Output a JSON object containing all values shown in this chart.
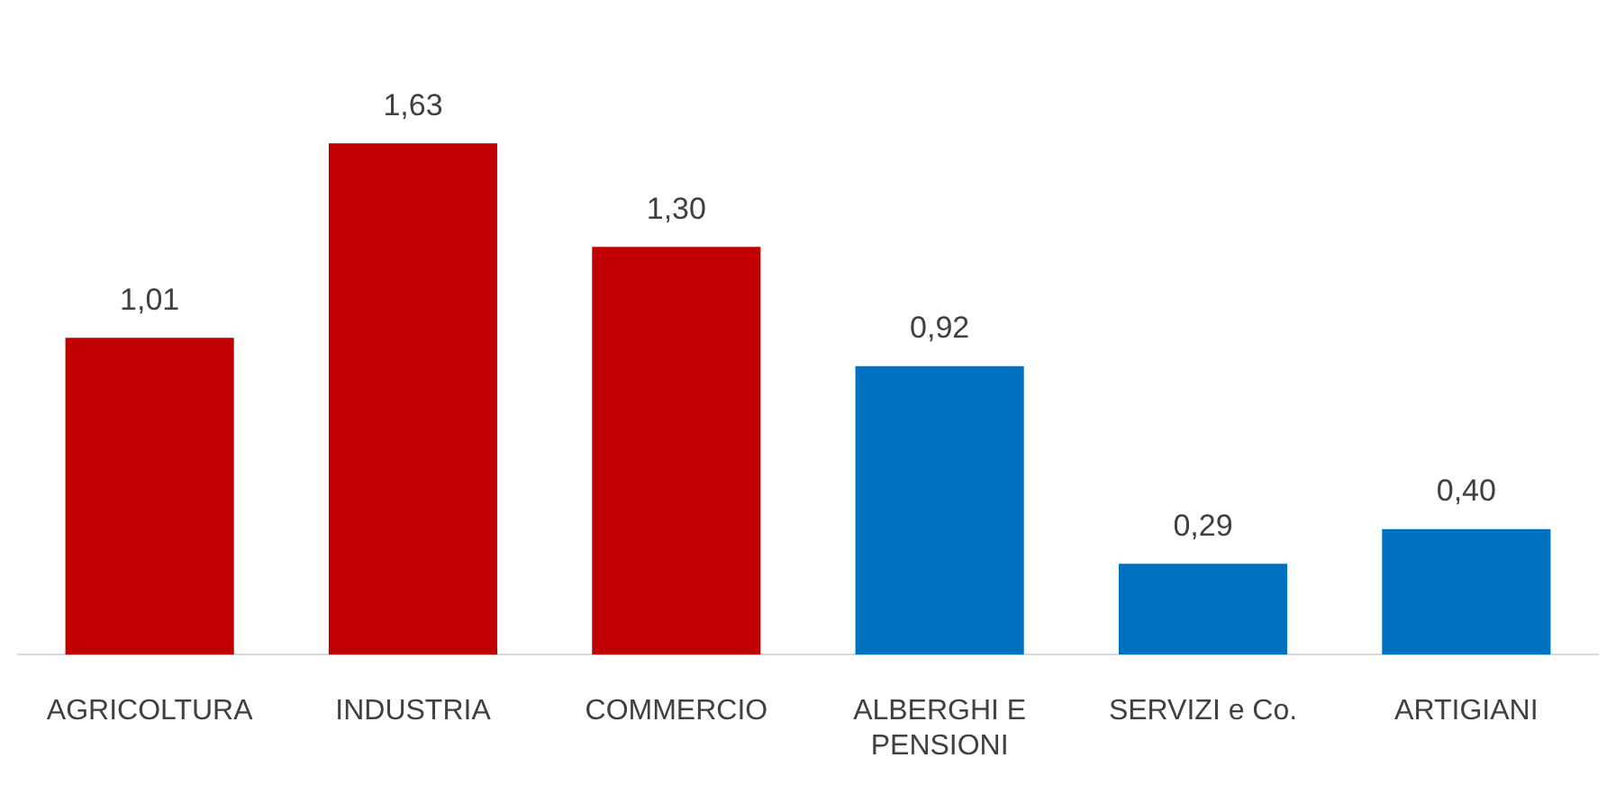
{
  "chart_data": {
    "type": "bar",
    "categories": [
      "AGRICOLTURA",
      "INDUSTRIA",
      "COMMERCIO",
      "ALBERGHI E PENSIONI",
      "SERVIZI e Co.",
      "ARTIGIANI"
    ],
    "values": [
      1.01,
      1.63,
      1.3,
      0.92,
      0.29,
      0.4
    ],
    "colors": [
      "#c00000",
      "#c00000",
      "#c00000",
      "#0070c0",
      "#0070c0",
      "#0070c0"
    ],
    "value_labels": [
      "1,01",
      "1,63",
      "1,30",
      "0,92",
      "0,29",
      "0,40"
    ],
    "grid": false,
    "legend": false
  }
}
